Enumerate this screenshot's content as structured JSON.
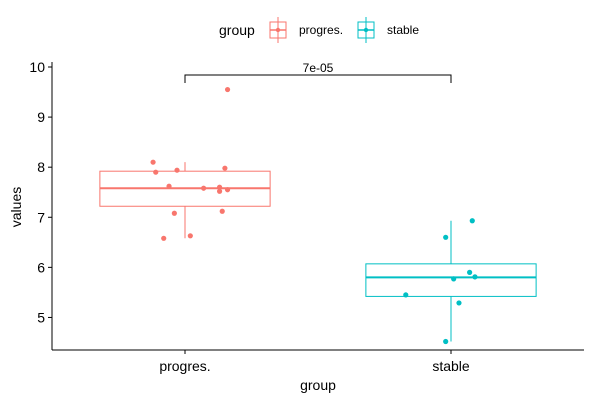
{
  "chart_data": {
    "type": "boxplot",
    "xlabel": "group",
    "ylabel": "values",
    "ylim": [
      4.35,
      10.1
    ],
    "yticks": [
      5,
      6,
      7,
      8,
      9,
      10
    ],
    "grid": false,
    "legend": {
      "title": "group",
      "position": "top",
      "entries": [
        {
          "label": "progres.",
          "color": "#F8766D"
        },
        {
          "label": "stable",
          "color": "#00BFC4"
        }
      ]
    },
    "categories": [
      "progres.",
      "stable"
    ],
    "series": [
      {
        "name": "progres.",
        "color": "#F8766D",
        "box": {
          "min": 6.58,
          "q1": 7.22,
          "median": 7.58,
          "q3": 7.92,
          "max": 8.1
        },
        "points": [
          [
            0.88,
            8.1
          ],
          [
            0.89,
            7.9
          ],
          [
            0.97,
            7.94
          ],
          [
            0.94,
            7.62
          ],
          [
            0.96,
            7.08
          ],
          [
            0.92,
            6.58
          ],
          [
            1.02,
            6.63
          ],
          [
            1.07,
            7.58
          ],
          [
            1.13,
            7.6
          ],
          [
            1.15,
            7.98
          ],
          [
            1.13,
            7.52
          ],
          [
            1.16,
            7.55
          ],
          [
            1.14,
            7.12
          ],
          [
            1.16,
            9.55
          ]
        ]
      },
      {
        "name": "stable",
        "color": "#00BFC4",
        "box": {
          "min": 4.52,
          "q1": 5.42,
          "median": 5.8,
          "q3": 6.07,
          "max": 6.93
        },
        "points": [
          [
            1.83,
            5.45
          ],
          [
            1.98,
            6.6
          ],
          [
            1.98,
            4.52
          ],
          [
            2.01,
            5.77
          ],
          [
            2.03,
            5.29
          ],
          [
            2.07,
            5.9
          ],
          [
            2.09,
            5.81
          ],
          [
            2.08,
            6.93
          ]
        ]
      }
    ],
    "annotation": {
      "text": "7e-05",
      "from": "progres.",
      "to": "stable"
    }
  }
}
